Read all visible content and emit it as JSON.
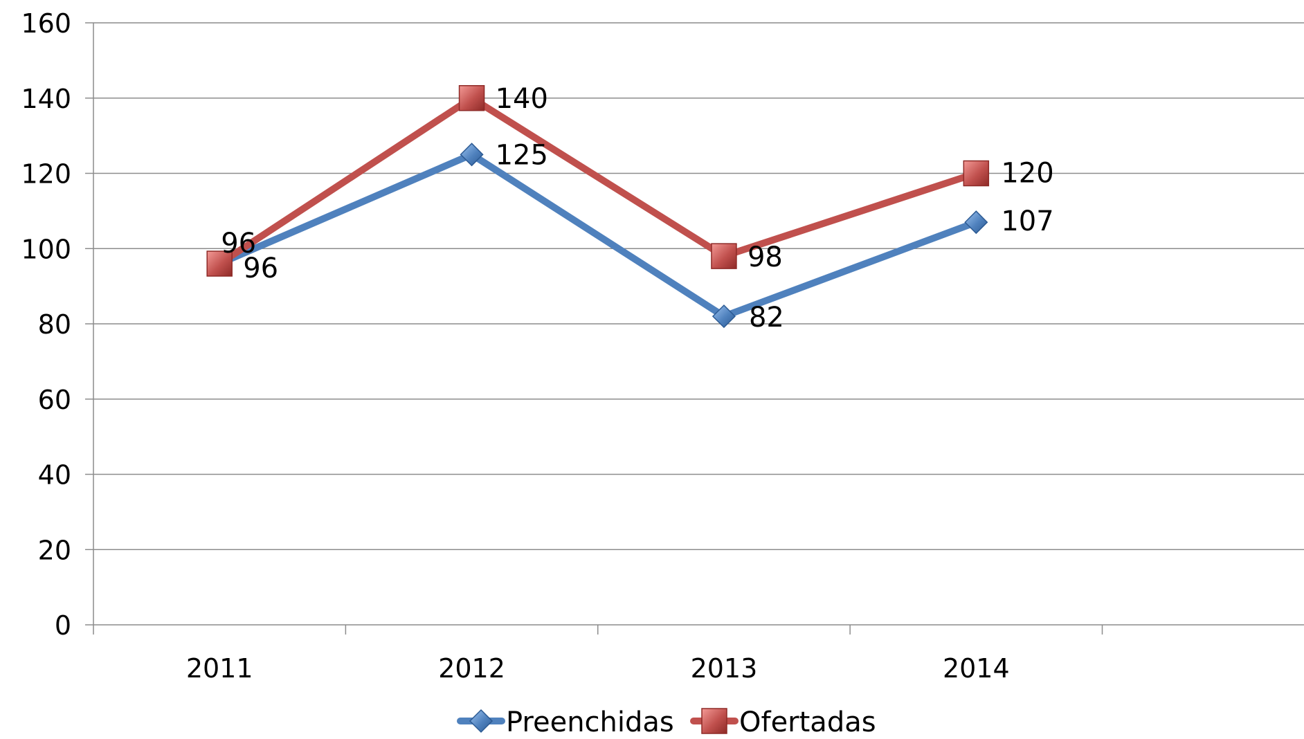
{
  "chart_data": {
    "type": "line",
    "categories": [
      "2011",
      "2012",
      "2013",
      "2014"
    ],
    "series": [
      {
        "name": "Preenchidas",
        "values": [
          96,
          125,
          82,
          107
        ],
        "color": "#4F81BD",
        "marker": "diamond"
      },
      {
        "name": "Ofertadas",
        "values": [
          96,
          140,
          98,
          120
        ],
        "color": "#C0504D",
        "marker": "square"
      }
    ],
    "ylim": [
      0,
      160
    ],
    "yticks": [
      0,
      20,
      40,
      60,
      80,
      100,
      120,
      140,
      160
    ],
    "grid": true,
    "legend": "bottom-center",
    "data_labels": true
  }
}
